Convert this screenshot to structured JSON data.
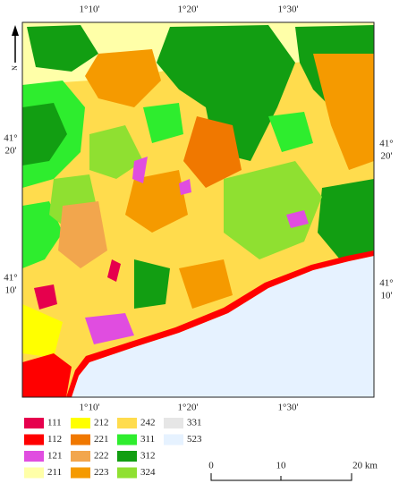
{
  "map": {
    "north_label": "N",
    "top_labels": [
      "1°10'",
      "1°20'",
      "1°30'"
    ],
    "bottom_labels": [
      "1°10'",
      "1°20'",
      "1°30'"
    ],
    "left_labels": [
      {
        "degrees": "41°",
        "minutes": "20'"
      },
      {
        "degrees": "41°",
        "minutes": "10'"
      }
    ],
    "right_labels": [
      {
        "degrees": "41°",
        "minutes": "20'"
      },
      {
        "degrees": "41°",
        "minutes": "10'"
      }
    ]
  },
  "legend": {
    "items": [
      {
        "code": "111",
        "color": "#e6004d"
      },
      {
        "code": "112",
        "color": "#ff0000"
      },
      {
        "code": "121",
        "color": "#e04de0"
      },
      {
        "code": "211",
        "color": "#ffffa8"
      },
      {
        "code": "212",
        "color": "#ffff00"
      },
      {
        "code": "221",
        "color": "#f07800"
      },
      {
        "code": "222",
        "color": "#f2a64d"
      },
      {
        "code": "223",
        "color": "#f59a00"
      },
      {
        "code": "242",
        "color": "#ffdc4d"
      },
      {
        "code": "311",
        "color": "#2eed2e"
      },
      {
        "code": "312",
        "color": "#129e12"
      },
      {
        "code": "324",
        "color": "#8fe031"
      },
      {
        "code": "331",
        "color": "#e6e6e6"
      },
      {
        "code": "523",
        "color": "#e6f2ff"
      }
    ]
  },
  "scale_bar": {
    "labels": [
      "0",
      "10",
      "20 km"
    ]
  }
}
